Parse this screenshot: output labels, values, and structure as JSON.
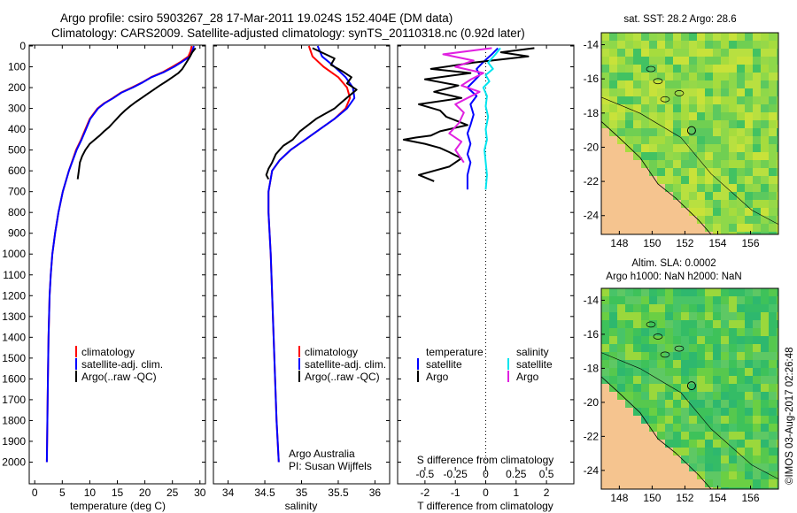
{
  "header": {
    "line1": "Argo profile: csiro 5903267_28 17-Mar-2011 19.024S 152.404E (DM data)",
    "line2": "Climatology: CARS2009. Satellite-adjusted climatology: synTS_20110318.nc (0.92d later)"
  },
  "colors": {
    "climatology": "#ff0000",
    "satellite": "#0000ff",
    "argo": "#000000",
    "sal_satellite": "#00e5ee",
    "sal_argo": "#e020e0",
    "land": "#f5c48f",
    "ocean_low": "#20c060",
    "ocean_high": "#e8e840"
  },
  "chart_data": [
    {
      "id": "temperature",
      "type": "line",
      "xlabel": "temperature (deg C)",
      "ylabel": "",
      "xlim": [
        -1,
        31
      ],
      "ylim": [
        0,
        2100
      ],
      "y_reversed": true,
      "xticks": [
        "0",
        "5",
        "10",
        "15",
        "20",
        "25",
        "30"
      ],
      "yticks": [
        "0",
        "100",
        "200",
        "300",
        "400",
        "500",
        "600",
        "700",
        "800",
        "900",
        "1000",
        "1100",
        "1200",
        "1300",
        "1400",
        "1500",
        "1600",
        "1700",
        "1800",
        "1900",
        "2000"
      ],
      "legend": [
        "climatology",
        "satellite-adj. clim.",
        "Argo(..raw -QC)"
      ],
      "legend_location": "lower-center",
      "series": [
        {
          "name": "climatology",
          "color": "#ff0000",
          "x": [
            28.5,
            28.3,
            27.9,
            26.6,
            25.0,
            23.3,
            21.1,
            19.5,
            17.6,
            15.6,
            14.2,
            12.6,
            11.4,
            10.0,
            9.2,
            8.4,
            7.5,
            6.2,
            5.1,
            4.3,
            3.7,
            3.2,
            2.9,
            2.7,
            2.5,
            2.4,
            2.3,
            2.2
          ],
          "y": [
            0,
            25,
            50,
            75,
            100,
            125,
            150,
            175,
            200,
            225,
            250,
            275,
            300,
            350,
            400,
            450,
            500,
            600,
            700,
            800,
            900,
            1000,
            1100,
            1200,
            1400,
            1600,
            1800,
            2000
          ]
        },
        {
          "name": "satellite-adj. clim.",
          "color": "#0000ff",
          "x": [
            28.9,
            28.6,
            28.2,
            26.8,
            25.3,
            23.5,
            21.2,
            19.6,
            17.8,
            15.7,
            14.3,
            12.7,
            11.5,
            10.1,
            9.3,
            8.5,
            7.6,
            6.2,
            5.1,
            4.3,
            3.7,
            3.2,
            2.9,
            2.7,
            2.5,
            2.4,
            2.3,
            2.2
          ],
          "y": [
            0,
            25,
            50,
            75,
            100,
            125,
            150,
            175,
            200,
            225,
            250,
            275,
            300,
            350,
            400,
            450,
            500,
            600,
            700,
            800,
            900,
            1000,
            1100,
            1200,
            1400,
            1600,
            1800,
            2000
          ]
        },
        {
          "name": "Argo(..raw -QC)",
          "color": "#000000",
          "x": [
            29.2,
            28.6,
            28.0,
            27.4,
            26.8,
            26.1,
            25.0,
            23.9,
            22.7,
            21.6,
            20.5,
            19.4,
            18.3,
            17.3,
            16.4,
            15.6,
            14.9,
            14.2,
            13.5,
            12.6,
            11.8,
            10.9,
            10.0,
            9.2,
            8.6,
            8.2,
            8.0,
            7.8
          ],
          "y": [
            10,
            30,
            60,
            85,
            110,
            130,
            150,
            170,
            190,
            210,
            230,
            250,
            270,
            290,
            310,
            330,
            350,
            370,
            390,
            410,
            430,
            450,
            470,
            500,
            530,
            560,
            600,
            640
          ]
        }
      ]
    },
    {
      "id": "salinity",
      "type": "line",
      "xlabel": "salinity",
      "ylabel": "",
      "xlim": [
        33.8,
        36.2
      ],
      "ylim": [
        0,
        2100
      ],
      "y_reversed": true,
      "xticks": [
        "34",
        "34.5",
        "35",
        "35.5",
        "36"
      ],
      "legend": [
        "climatology",
        "satellite-adj. clim.",
        "Argo(..raw -QC)"
      ],
      "legend_location": "lower-right",
      "annotation": [
        "Argo Australia",
        "PI: Susan Wijffels"
      ],
      "series": [
        {
          "name": "climatology",
          "color": "#ff0000",
          "x": [
            35.1,
            35.15,
            35.3,
            35.5,
            35.62,
            35.66,
            35.6,
            35.45,
            35.25,
            35.05,
            34.85,
            34.7,
            34.6,
            34.55,
            34.55,
            34.58,
            34.62,
            34.66,
            34.69
          ],
          "y": [
            0,
            50,
            100,
            150,
            200,
            250,
            300,
            350,
            400,
            450,
            500,
            550,
            600,
            700,
            800,
            1000,
            1400,
            1800,
            2000
          ]
        },
        {
          "name": "satellite-adj. clim.",
          "color": "#0000ff",
          "x": [
            35.22,
            35.28,
            35.45,
            35.6,
            35.7,
            35.72,
            35.62,
            35.45,
            35.25,
            35.05,
            34.85,
            34.7,
            34.6,
            34.55,
            34.55,
            34.58,
            34.62,
            34.66,
            34.69
          ],
          "y": [
            0,
            50,
            100,
            150,
            200,
            250,
            300,
            350,
            400,
            450,
            500,
            550,
            600,
            700,
            800,
            1000,
            1400,
            1800,
            2000
          ]
        },
        {
          "name": "Argo(..raw -QC)",
          "color": "#000000",
          "x": [
            35.15,
            35.45,
            35.4,
            35.55,
            35.68,
            35.62,
            35.75,
            35.58,
            35.45,
            35.2,
            34.98,
            34.88,
            34.75,
            34.65,
            34.6,
            34.55,
            34.52,
            34.55
          ],
          "y": [
            10,
            60,
            90,
            120,
            150,
            180,
            210,
            260,
            300,
            350,
            410,
            450,
            480,
            520,
            560,
            590,
            620,
            640
          ]
        }
      ]
    },
    {
      "id": "difference",
      "type": "line",
      "xlabel": "T difference from climatology",
      "xlabel_top": "S difference from climatology",
      "xlim": [
        -2.9,
        2.9
      ],
      "ylim": [
        0,
        2100
      ],
      "y_reversed": true,
      "xticks": [
        "-2",
        "-1",
        "0",
        "1",
        "2"
      ],
      "xticks_top": [
        "-0.5",
        "-0.25",
        "0",
        "0.25",
        "0.5"
      ],
      "legend_headers": [
        "temperature",
        "salinity"
      ],
      "legend": [
        "satellite",
        "Argo",
        "satellite",
        "Argo"
      ],
      "series": [
        {
          "name": "T satellite",
          "color": "#0000ff",
          "x": [
            0.4,
            0.2,
            -0.1,
            -0.3,
            -0.2,
            -0.4,
            -0.6,
            -0.3,
            -0.5,
            -0.4,
            -0.5,
            -0.6,
            -0.5,
            -0.6,
            -0.5,
            -0.6,
            -0.6
          ],
          "y": [
            10,
            40,
            80,
            110,
            140,
            170,
            200,
            240,
            280,
            330,
            380,
            420,
            470,
            520,
            560,
            620,
            690
          ]
        },
        {
          "name": "T Argo",
          "color": "#000000",
          "x": [
            1.6,
            0.5,
            1.4,
            -0.4,
            -1.8,
            -0.5,
            -2.0,
            -0.9,
            -1.7,
            -0.8,
            -2.2,
            -1.5,
            -1.3,
            -0.6,
            -1.5,
            -1.8,
            -2.3,
            -2.7,
            -2.0,
            -1.5,
            -1.2,
            -0.8,
            -1.2,
            -2.2,
            -1.7
          ],
          "y": [
            10,
            30,
            50,
            80,
            110,
            130,
            160,
            190,
            220,
            250,
            280,
            310,
            340,
            380,
            410,
            430,
            440,
            450,
            470,
            490,
            510,
            540,
            580,
            620,
            650
          ]
        },
        {
          "name": "S satellite",
          "color": "#00e5ee",
          "x": [
            0.12,
            0.08,
            0.02,
            0.06,
            0.0,
            0.03,
            -0.02,
            0.01,
            0.0,
            0.02,
            0.0,
            0.01,
            -0.01,
            0.0,
            0.01,
            0.0
          ],
          "y": [
            10,
            40,
            80,
            110,
            140,
            170,
            200,
            240,
            290,
            340,
            400,
            450,
            500,
            560,
            620,
            690
          ]
        },
        {
          "name": "S Argo",
          "color": "#e020e0",
          "x": [
            0.05,
            -0.35,
            -0.1,
            -0.25,
            -0.02,
            -0.12,
            -0.2,
            -0.05,
            -0.15,
            -0.25,
            -0.18,
            -0.22,
            -0.3,
            -0.2,
            -0.25,
            -0.18
          ],
          "y": [
            10,
            40,
            70,
            100,
            130,
            160,
            190,
            220,
            250,
            280,
            320,
            370,
            420,
            460,
            500,
            560
          ]
        }
      ]
    }
  ],
  "maps": [
    {
      "id": "sst",
      "title1": "sat. SST: 28.2  Argo: 28.6",
      "title2": "",
      "xticks": [
        "148",
        "150",
        "152",
        "154",
        "156"
      ],
      "yticks": [
        "-14",
        "-16",
        "-18",
        "-20",
        "-22",
        "-24"
      ]
    },
    {
      "id": "sla",
      "title1": "Altim. SLA: 0.0002",
      "title2": "Argo h1000: NaN h2000: NaN",
      "xticks": [
        "148",
        "150",
        "152",
        "154",
        "156"
      ],
      "yticks": [
        "-14",
        "-16",
        "-18",
        "-20",
        "-22",
        "-24"
      ]
    }
  ],
  "credit": "©IMOS 03-Aug-2017 02:26:48"
}
